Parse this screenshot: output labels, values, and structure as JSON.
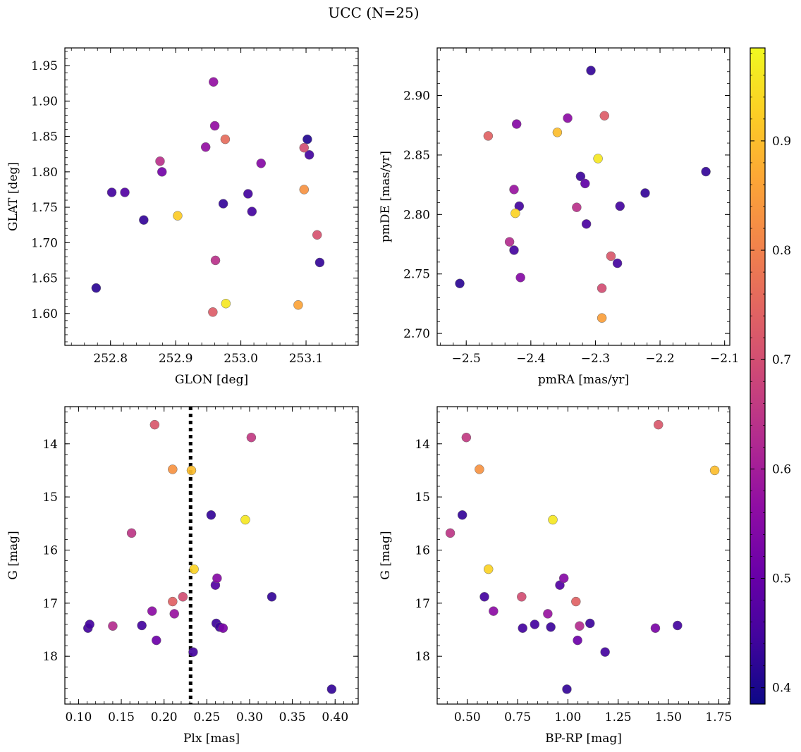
{
  "figure": {
    "title": "UCC (N=25)",
    "colorbar": {
      "colormap": "plasma",
      "range": [
        0.385,
        0.985
      ],
      "ticks": [
        0.4,
        0.5,
        0.6,
        0.7,
        0.8,
        0.9
      ],
      "tick_labels": [
        "0.4",
        "0.5",
        "0.6",
        "0.7",
        "0.8",
        "0.9"
      ]
    }
  },
  "chart_data": [
    {
      "type": "scatter",
      "xlabel": "GLON [deg]",
      "ylabel": "GLAT [deg]",
      "xlim": [
        252.73,
        253.18
      ],
      "ylim": [
        1.555,
        1.975
      ],
      "xticks": [
        252.8,
        252.9,
        253.0,
        253.1
      ],
      "xtick_labels": [
        "252.8",
        "252.9",
        "253.0",
        "253.1"
      ],
      "yticks": [
        1.6,
        1.65,
        1.7,
        1.75,
        1.8,
        1.85,
        1.9,
        1.95
      ],
      "ytick_labels": [
        "1.60",
        "1.65",
        "1.70",
        "1.75",
        "1.80",
        "1.85",
        "1.90",
        "1.95"
      ],
      "points": [
        {
          "x": 252.778,
          "y": 1.636,
          "c": 0.42
        },
        {
          "x": 252.802,
          "y": 1.771,
          "c": 0.45
        },
        {
          "x": 252.822,
          "y": 1.771,
          "c": 0.47
        },
        {
          "x": 252.851,
          "y": 1.732,
          "c": 0.43
        },
        {
          "x": 252.876,
          "y": 1.815,
          "c": 0.64
        },
        {
          "x": 252.879,
          "y": 1.8,
          "c": 0.52
        },
        {
          "x": 252.903,
          "y": 1.738,
          "c": 0.92
        },
        {
          "x": 252.946,
          "y": 1.835,
          "c": 0.57
        },
        {
          "x": 252.958,
          "y": 1.927,
          "c": 0.57
        },
        {
          "x": 252.957,
          "y": 1.602,
          "c": 0.73
        },
        {
          "x": 252.96,
          "y": 1.865,
          "c": 0.57
        },
        {
          "x": 252.961,
          "y": 1.675,
          "c": 0.64
        },
        {
          "x": 252.973,
          "y": 1.755,
          "c": 0.43
        },
        {
          "x": 252.976,
          "y": 1.846,
          "c": 0.76
        },
        {
          "x": 252.977,
          "y": 1.614,
          "c": 0.96
        },
        {
          "x": 253.011,
          "y": 1.769,
          "c": 0.45
        },
        {
          "x": 253.017,
          "y": 1.744,
          "c": 0.45
        },
        {
          "x": 253.031,
          "y": 1.812,
          "c": 0.55
        },
        {
          "x": 253.088,
          "y": 1.612,
          "c": 0.86
        },
        {
          "x": 253.097,
          "y": 1.775,
          "c": 0.83
        },
        {
          "x": 253.097,
          "y": 1.834,
          "c": 0.7
        },
        {
          "x": 253.102,
          "y": 1.846,
          "c": 0.41
        },
        {
          "x": 253.105,
          "y": 1.824,
          "c": 0.45
        },
        {
          "x": 253.117,
          "y": 1.711,
          "c": 0.71
        },
        {
          "x": 253.121,
          "y": 1.672,
          "c": 0.43
        }
      ]
    },
    {
      "type": "scatter",
      "xlabel": "pmRA [mas/yr]",
      "ylabel": "pmDE [mas/yr]",
      "xlim": [
        -2.545,
        -2.092
      ],
      "ylim": [
        2.69,
        2.94
      ],
      "xticks": [
        -2.5,
        -2.4,
        -2.3,
        -2.2,
        -2.1
      ],
      "xtick_labels": [
        "−2.5",
        "−2.4",
        "−2.3",
        "−2.2",
        "−2.1"
      ],
      "yticks": [
        2.7,
        2.75,
        2.8,
        2.85,
        2.9
      ],
      "ytick_labels": [
        "2.70",
        "2.75",
        "2.80",
        "2.85",
        "2.90"
      ],
      "points": [
        {
          "x": -2.51,
          "y": 2.742,
          "c": 0.42
        },
        {
          "x": -2.466,
          "y": 2.866,
          "c": 0.74
        },
        {
          "x": -2.433,
          "y": 2.777,
          "c": 0.63
        },
        {
          "x": -2.426,
          "y": 2.821,
          "c": 0.58
        },
        {
          "x": -2.426,
          "y": 2.77,
          "c": 0.45
        },
        {
          "x": -2.424,
          "y": 2.801,
          "c": 0.93
        },
        {
          "x": -2.422,
          "y": 2.876,
          "c": 0.55
        },
        {
          "x": -2.418,
          "y": 2.807,
          "c": 0.45
        },
        {
          "x": -2.416,
          "y": 2.747,
          "c": 0.55
        },
        {
          "x": -2.359,
          "y": 2.869,
          "c": 0.9
        },
        {
          "x": -2.343,
          "y": 2.881,
          "c": 0.56
        },
        {
          "x": -2.329,
          "y": 2.806,
          "c": 0.64
        },
        {
          "x": -2.323,
          "y": 2.832,
          "c": 0.44
        },
        {
          "x": -2.316,
          "y": 2.826,
          "c": 0.49
        },
        {
          "x": -2.314,
          "y": 2.792,
          "c": 0.46
        },
        {
          "x": -2.307,
          "y": 2.921,
          "c": 0.43
        },
        {
          "x": -2.296,
          "y": 2.847,
          "c": 0.96
        },
        {
          "x": -2.29,
          "y": 2.738,
          "c": 0.7
        },
        {
          "x": -2.29,
          "y": 2.713,
          "c": 0.85
        },
        {
          "x": -2.286,
          "y": 2.883,
          "c": 0.73
        },
        {
          "x": -2.276,
          "y": 2.765,
          "c": 0.72
        },
        {
          "x": -2.266,
          "y": 2.759,
          "c": 0.45
        },
        {
          "x": -2.262,
          "y": 2.807,
          "c": 0.45
        },
        {
          "x": -2.223,
          "y": 2.818,
          "c": 0.43
        },
        {
          "x": -2.129,
          "y": 2.836,
          "c": 0.43
        }
      ]
    },
    {
      "type": "scatter",
      "xlabel": "Plx [mas]",
      "ylabel": "G [mag]",
      "xlim": [
        0.084,
        0.427
      ],
      "ylim": [
        18.9,
        13.3
      ],
      "y_inverted": true,
      "xticks": [
        0.1,
        0.15,
        0.2,
        0.25,
        0.3,
        0.35,
        0.4
      ],
      "xtick_labels": [
        "0.10",
        "0.15",
        "0.20",
        "0.25",
        "0.30",
        "0.35",
        "0.40"
      ],
      "yticks": [
        14,
        15,
        16,
        17,
        18
      ],
      "ytick_labels": [
        "14",
        "15",
        "16",
        "17",
        "18"
      ],
      "vline": {
        "x": 0.231,
        "style": "dotted"
      },
      "points": [
        {
          "x": 0.111,
          "y": 17.47,
          "c": 0.45
        },
        {
          "x": 0.113,
          "y": 17.4,
          "c": 0.45
        },
        {
          "x": 0.14,
          "y": 17.43,
          "c": 0.63
        },
        {
          "x": 0.162,
          "y": 15.68,
          "c": 0.65
        },
        {
          "x": 0.174,
          "y": 17.42,
          "c": 0.45
        },
        {
          "x": 0.186,
          "y": 17.15,
          "c": 0.56
        },
        {
          "x": 0.189,
          "y": 13.64,
          "c": 0.72
        },
        {
          "x": 0.191,
          "y": 17.7,
          "c": 0.51
        },
        {
          "x": 0.21,
          "y": 14.48,
          "c": 0.83
        },
        {
          "x": 0.21,
          "y": 16.97,
          "c": 0.74
        },
        {
          "x": 0.212,
          "y": 17.2,
          "c": 0.58
        },
        {
          "x": 0.222,
          "y": 16.88,
          "c": 0.7
        },
        {
          "x": 0.232,
          "y": 14.5,
          "c": 0.9
        },
        {
          "x": 0.234,
          "y": 17.92,
          "c": 0.45
        },
        {
          "x": 0.235,
          "y": 16.36,
          "c": 0.93
        },
        {
          "x": 0.255,
          "y": 15.34,
          "c": 0.43
        },
        {
          "x": 0.26,
          "y": 16.66,
          "c": 0.47
        },
        {
          "x": 0.261,
          "y": 17.38,
          "c": 0.44
        },
        {
          "x": 0.262,
          "y": 16.53,
          "c": 0.55
        },
        {
          "x": 0.265,
          "y": 17.45,
          "c": 0.44
        },
        {
          "x": 0.269,
          "y": 17.47,
          "c": 0.53
        },
        {
          "x": 0.295,
          "y": 15.43,
          "c": 0.96
        },
        {
          "x": 0.302,
          "y": 13.88,
          "c": 0.66
        },
        {
          "x": 0.326,
          "y": 16.88,
          "c": 0.43
        },
        {
          "x": 0.396,
          "y": 18.62,
          "c": 0.43
        }
      ]
    },
    {
      "type": "scatter",
      "xlabel": "BP-RP [mag]",
      "ylabel": "G [mag]",
      "xlim": [
        0.35,
        1.805
      ],
      "ylim": [
        18.9,
        13.3
      ],
      "y_inverted": true,
      "xticks": [
        0.5,
        0.75,
        1.0,
        1.25,
        1.5,
        1.75
      ],
      "xtick_labels": [
        "0.50",
        "0.75",
        "1.00",
        "1.25",
        "1.50",
        "1.75"
      ],
      "yticks": [
        14,
        15,
        16,
        17,
        18
      ],
      "ytick_labels": [
        "14",
        "15",
        "16",
        "17",
        "18"
      ],
      "points": [
        {
          "x": 0.415,
          "y": 15.68,
          "c": 0.65
        },
        {
          "x": 0.475,
          "y": 15.34,
          "c": 0.43
        },
        {
          "x": 0.495,
          "y": 13.88,
          "c": 0.66
        },
        {
          "x": 0.56,
          "y": 14.48,
          "c": 0.83
        },
        {
          "x": 0.585,
          "y": 16.88,
          "c": 0.45
        },
        {
          "x": 0.605,
          "y": 16.36,
          "c": 0.93
        },
        {
          "x": 0.63,
          "y": 17.15,
          "c": 0.56
        },
        {
          "x": 0.77,
          "y": 16.88,
          "c": 0.7
        },
        {
          "x": 0.775,
          "y": 17.47,
          "c": 0.45
        },
        {
          "x": 0.835,
          "y": 17.4,
          "c": 0.45
        },
        {
          "x": 0.9,
          "y": 17.2,
          "c": 0.58
        },
        {
          "x": 0.915,
          "y": 17.45,
          "c": 0.44
        },
        {
          "x": 0.925,
          "y": 15.43,
          "c": 0.96
        },
        {
          "x": 0.96,
          "y": 16.66,
          "c": 0.47
        },
        {
          "x": 0.98,
          "y": 16.53,
          "c": 0.55
        },
        {
          "x": 0.995,
          "y": 18.62,
          "c": 0.43
        },
        {
          "x": 1.04,
          "y": 16.97,
          "c": 0.74
        },
        {
          "x": 1.048,
          "y": 17.7,
          "c": 0.51
        },
        {
          "x": 1.058,
          "y": 17.43,
          "c": 0.63
        },
        {
          "x": 1.11,
          "y": 17.38,
          "c": 0.44
        },
        {
          "x": 1.185,
          "y": 17.92,
          "c": 0.45
        },
        {
          "x": 1.435,
          "y": 17.47,
          "c": 0.53
        },
        {
          "x": 1.45,
          "y": 13.64,
          "c": 0.72
        },
        {
          "x": 1.545,
          "y": 17.42,
          "c": 0.45
        },
        {
          "x": 1.73,
          "y": 14.5,
          "c": 0.9
        }
      ]
    }
  ]
}
